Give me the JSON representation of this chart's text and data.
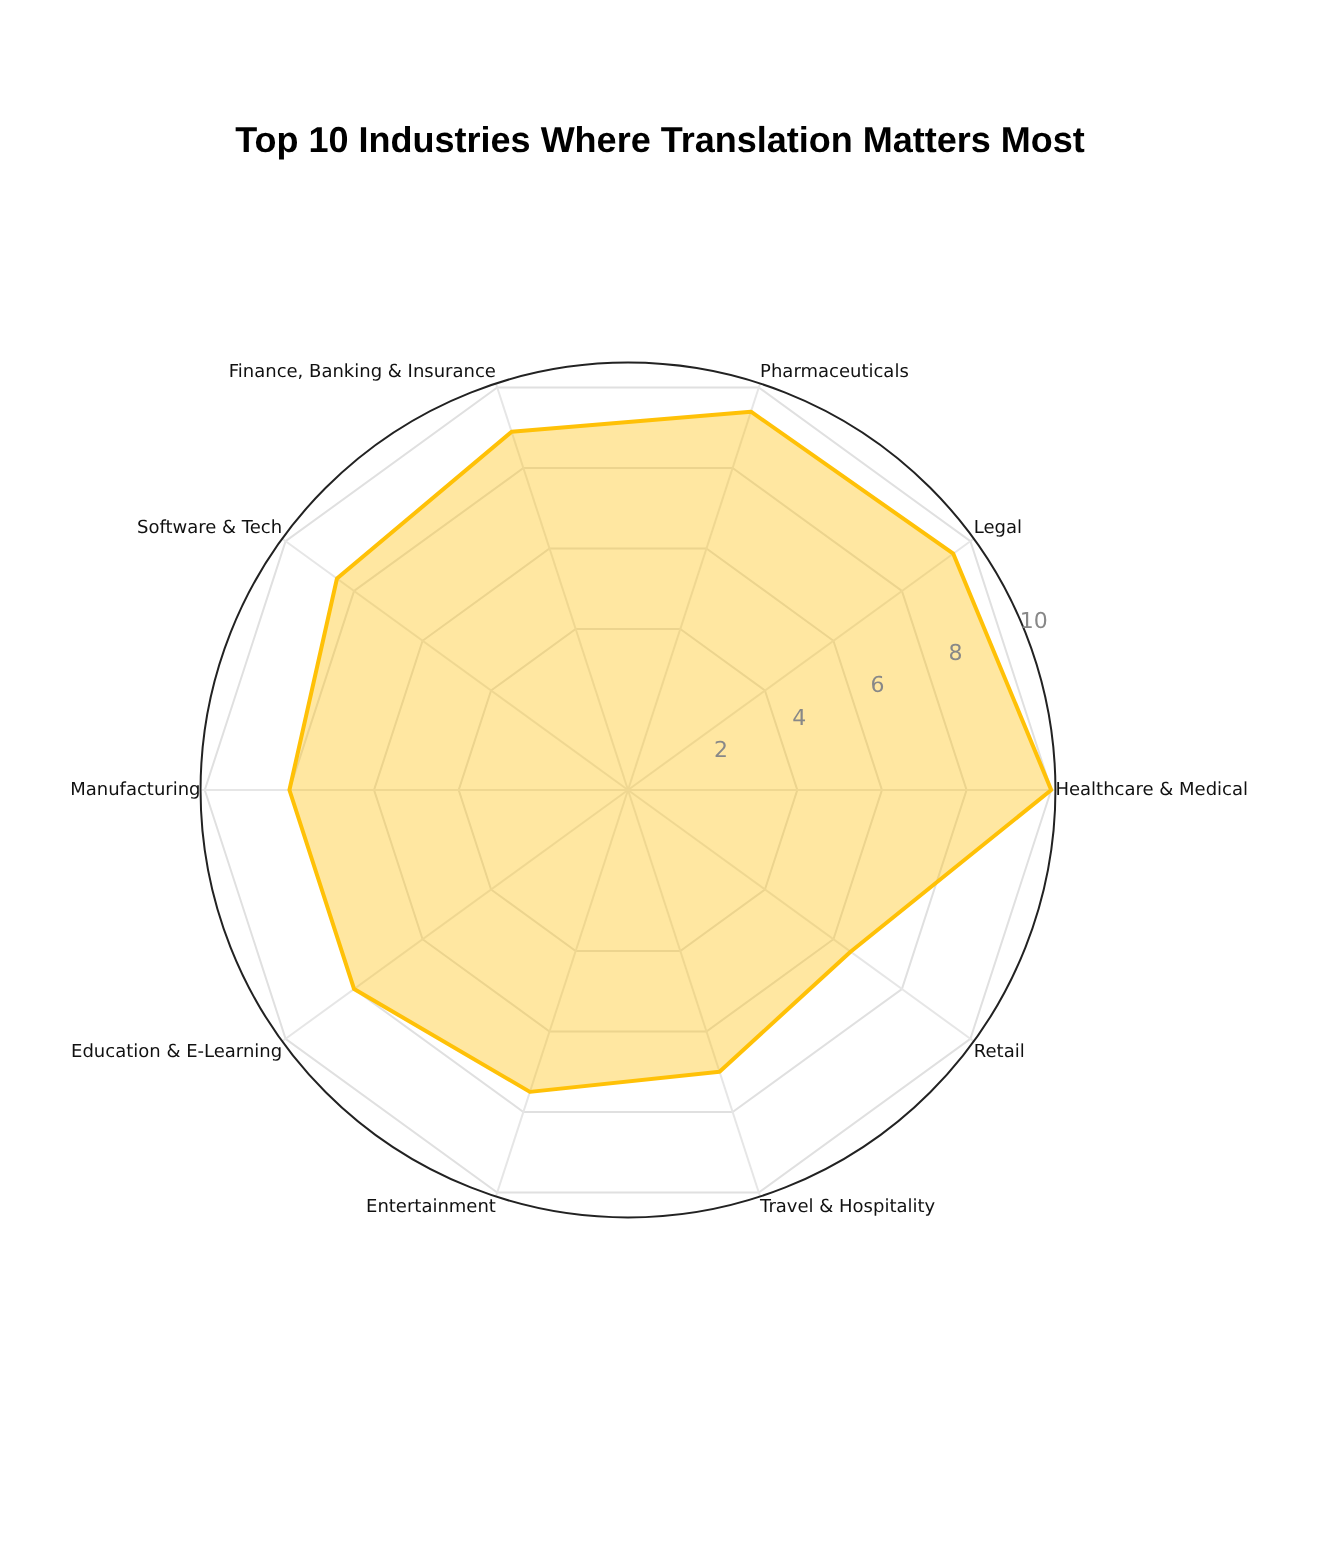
{
  "chart_data": {
    "type": "radar",
    "title": "Top 10 Industries Where Translation Matters Most",
    "categories": [
      "Pharmaceuticals",
      "Legal",
      "Healthcare & Medical",
      "Retail",
      "Travel & Hospitality",
      "Entertainment",
      "Education & E-Learning",
      "Manufacturing",
      "Software & Tech",
      "Finance, Banking & Insurance"
    ],
    "series": [
      {
        "color": "#ffc107",
        "values": [
          9.4,
          9.5,
          10,
          6.5,
          7,
          7.5,
          8,
          8,
          8.5,
          8.9
        ]
      }
    ],
    "ylim": [
      0,
      10.1
    ],
    "yticks": [
      2,
      4,
      6,
      8,
      10
    ],
    "grid": true,
    "marker": "none"
  }
}
